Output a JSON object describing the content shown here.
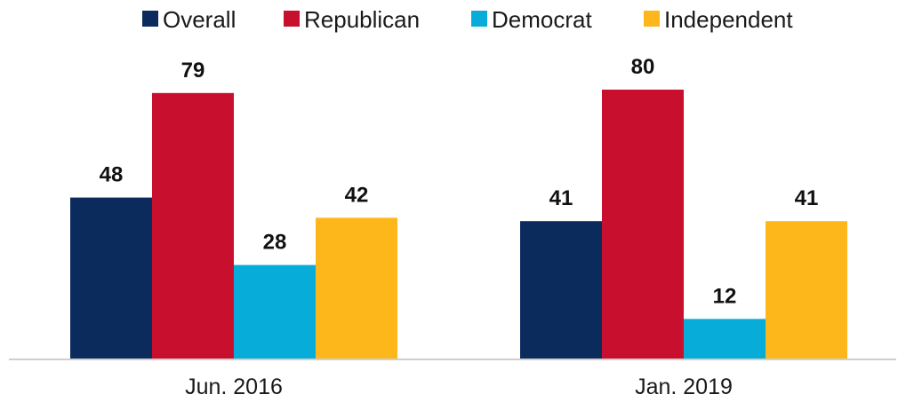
{
  "chart_data": {
    "type": "bar",
    "categories": [
      "Jun. 2016",
      "Jan. 2019"
    ],
    "series": [
      {
        "name": "Overall",
        "color": "#0b2b5c",
        "values": [
          48,
          41
        ]
      },
      {
        "name": "Republican",
        "color": "#c8102e",
        "values": [
          79,
          80
        ]
      },
      {
        "name": "Democrat",
        "color": "#08acd8",
        "values": [
          28,
          12
        ]
      },
      {
        "name": "Independent",
        "color": "#fdb71a",
        "values": [
          42,
          41
        ]
      }
    ],
    "ylim": [
      0,
      100
    ],
    "grid": false,
    "legend_position": "top"
  }
}
